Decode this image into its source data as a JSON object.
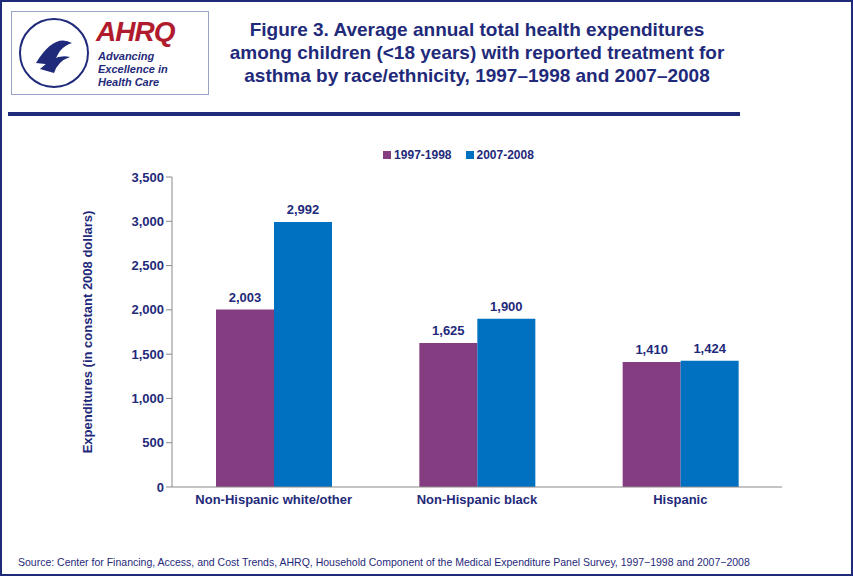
{
  "chart_data": {
    "type": "bar",
    "title": "Figure 3. Average annual total health expenditures among children (<18 years) with reported treatment for asthma by race/ethnicity, 1997–1998 and 2007–2008",
    "ylabel": "Expenditures (in constant 2008 dollars)",
    "categories": [
      "Non-Hispanic white/other",
      "Non-Hispanic black",
      "Hispanic"
    ],
    "series": [
      {
        "name": "1997-1998",
        "color": "#853d82",
        "values": [
          2003,
          1625,
          1410
        ],
        "value_labels": [
          "2,003",
          "1,625",
          "1,410"
        ]
      },
      {
        "name": "2007-2008",
        "color": "#0070c0",
        "values": [
          2992,
          1900,
          1424
        ],
        "value_labels": [
          "2,992",
          "1,900",
          "1,424"
        ]
      }
    ],
    "ylim": [
      0,
      3500
    ],
    "yticks": [
      0,
      500,
      {
        "value": 1000,
        "label": "1,000"
      },
      {
        "value": 1500,
        "label": "1,500"
      },
      {
        "value": 2000,
        "label": "2,000"
      },
      {
        "value": 2500,
        "label": "2,500"
      },
      {
        "value": 3000,
        "label": "3,000"
      },
      {
        "value": 3500,
        "label": "3,500"
      }
    ],
    "data_labels": true,
    "grid": false,
    "legend": "top",
    "annotations": [
      "AHRQ",
      "Advancing Excellence in Health Care",
      "Source: Center for Financing, Access, and Cost Trends, AHRQ, Household Component of the Medical Expenditure Panel Survey, 1997−1998 and 2007−2008"
    ]
  }
}
